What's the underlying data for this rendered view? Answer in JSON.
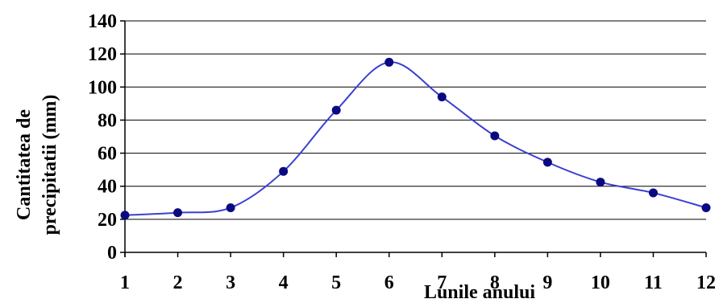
{
  "chart_data": {
    "type": "line",
    "x": [
      1,
      2,
      3,
      4,
      5,
      6,
      7,
      8,
      9,
      10,
      11,
      12
    ],
    "series": [
      {
        "values": [
          22.5,
          24,
          27,
          49,
          86,
          115,
          94,
          70.5,
          54.5,
          42.5,
          36,
          27
        ]
      }
    ],
    "xlabel": "Lunile anului",
    "ylabel_line1": "Cantitatea de",
    "ylabel_line2": "precipitatii (mm)",
    "xlim": [
      1,
      12
    ],
    "ylim": [
      0,
      140
    ],
    "y_ticks": [
      0,
      20,
      40,
      60,
      80,
      100,
      120,
      140
    ],
    "x_ticks": [
      1,
      2,
      3,
      4,
      5,
      6,
      7,
      8,
      9,
      10,
      11,
      12
    ],
    "grid": "horizontal",
    "legend": "none",
    "colors": {
      "line": "#3b3fd1",
      "marker": "#0a0a80",
      "grid": "#000000",
      "axis": "#000000"
    },
    "marker": "circle"
  }
}
